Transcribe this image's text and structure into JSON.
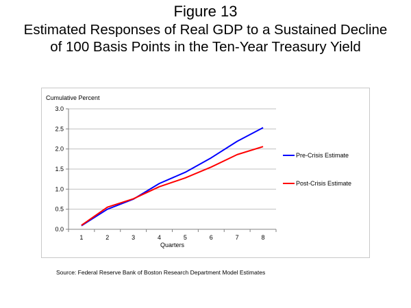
{
  "figure": {
    "number": "Figure 13",
    "title_line1": "Estimated Responses of Real GDP to a Sustained Decline",
    "title_line2": "of 100 Basis Points in the Ten-Year Treasury Yield"
  },
  "source_note": "Source:  Federal Reserve Bank of Boston Research Department Model Estimates",
  "chart_data": {
    "type": "line",
    "title": "",
    "ylabel": "Cumulative Percent",
    "xlabel": "Quarters",
    "x": [
      1,
      2,
      3,
      4,
      5,
      6,
      7,
      8
    ],
    "xlim": [
      0.5,
      8.5
    ],
    "ylim": [
      0,
      3
    ],
    "yticks": [
      0,
      0.5,
      1,
      1.5,
      2,
      2.5,
      3
    ],
    "ytick_labels": [
      "0.0",
      "0.5",
      "1.0",
      "1.5",
      "2.0",
      "2.5",
      "3.0"
    ],
    "grid": "horizontal",
    "legend_position": "right",
    "series": [
      {
        "name": "Pre-Crisis Estimate",
        "color": "#0000ff",
        "values": [
          0.09,
          0.5,
          0.75,
          1.14,
          1.42,
          1.78,
          2.19,
          2.53
        ]
      },
      {
        "name": "Post-Crisis Estimate",
        "color": "#ff0000",
        "values": [
          0.1,
          0.55,
          0.76,
          1.06,
          1.28,
          1.55,
          1.86,
          2.06
        ]
      }
    ]
  }
}
